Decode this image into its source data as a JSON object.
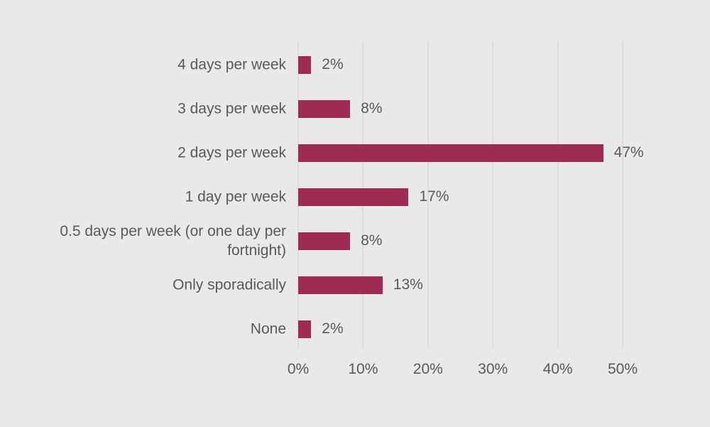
{
  "chart_data": {
    "type": "bar",
    "orientation": "horizontal",
    "title": "",
    "xlabel": "",
    "ylabel": "",
    "categories": [
      "4 days per week",
      "3 days per week",
      "2 days per week",
      "1 day per week",
      "0.5 days per week (or one day per fortnight)",
      "Only sporadically",
      "None"
    ],
    "values": [
      2,
      8,
      47,
      17,
      8,
      13,
      2
    ],
    "value_labels": [
      "2%",
      "8%",
      "47%",
      "17%",
      "8%",
      "13%",
      "2%"
    ],
    "x_ticks": [
      0,
      10,
      20,
      30,
      40,
      50
    ],
    "x_tick_labels": [
      "0%",
      "10%",
      "20%",
      "30%",
      "40%",
      "50%"
    ],
    "xlim": [
      0,
      50
    ],
    "grid": "vertical-only",
    "legend": "none",
    "colors": {
      "bar": "#9F2A54",
      "text": "#595959",
      "gridline": "#DDDBDD",
      "background": "#EAE9EA"
    }
  }
}
